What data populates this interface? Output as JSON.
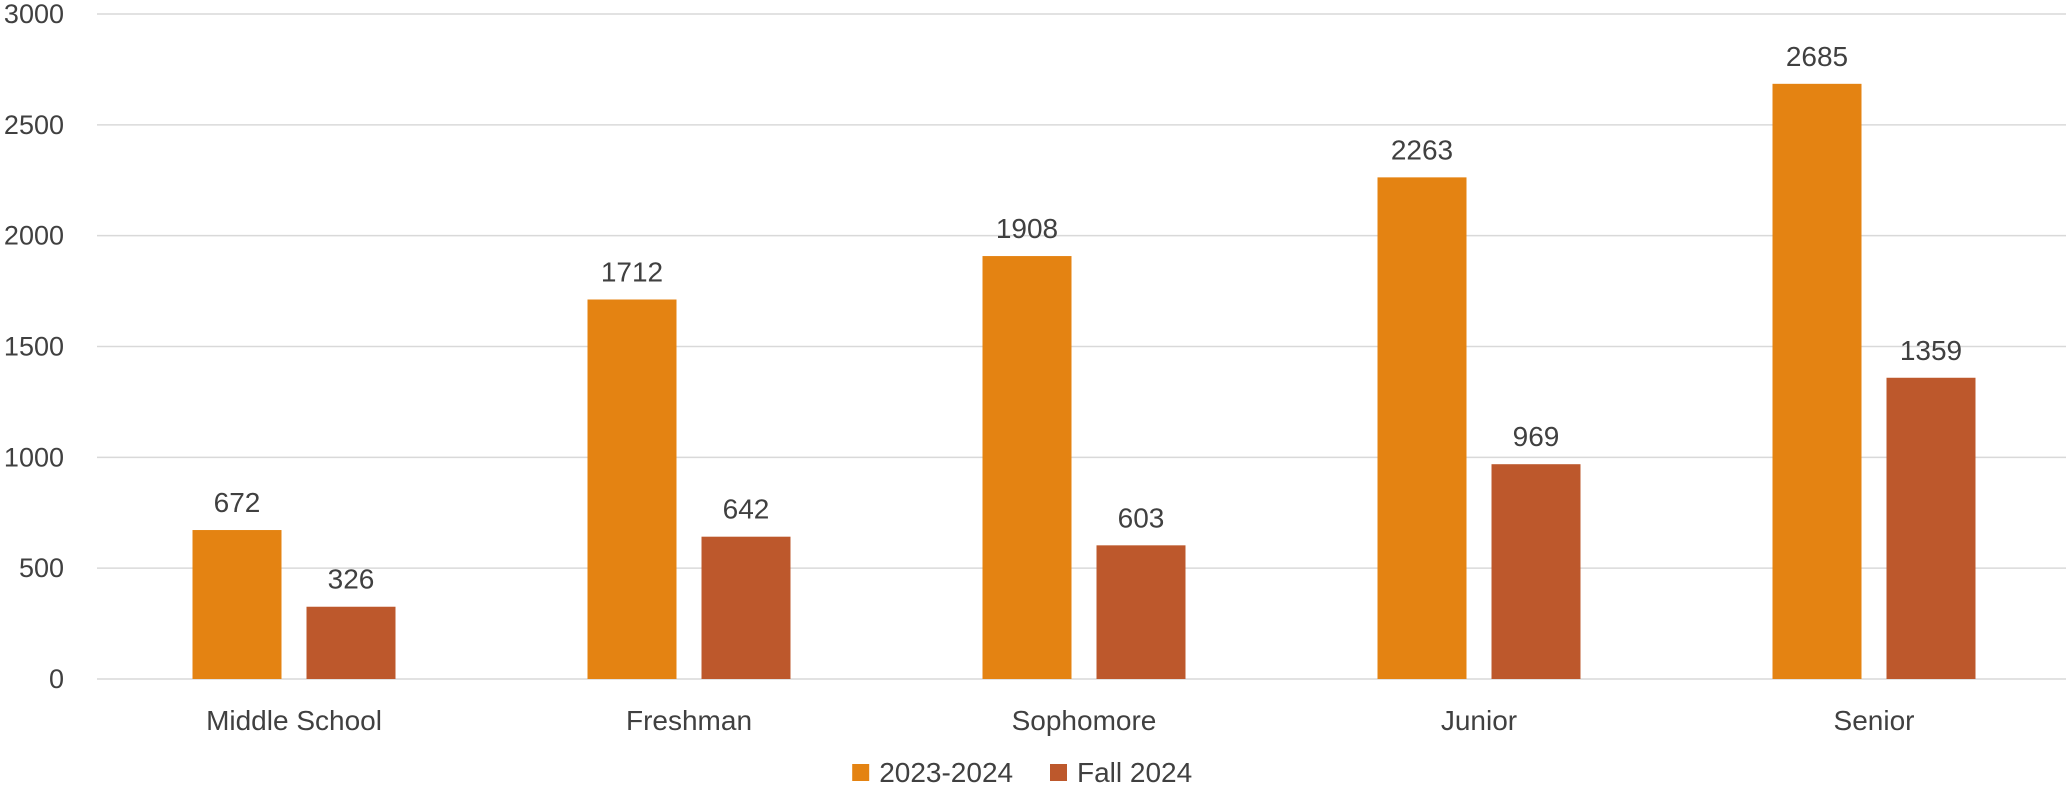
{
  "chart_data": {
    "type": "bar",
    "title": "",
    "xlabel": "",
    "ylabel": "",
    "categories": [
      "Middle School",
      "Freshman",
      "Sophomore",
      "Junior",
      "Senior"
    ],
    "series": [
      {
        "name": "2023-2024",
        "values": [
          672,
          1712,
          1908,
          2263,
          2685
        ],
        "color": "#E48312"
      },
      {
        "name": "Fall 2024",
        "values": [
          326,
          642,
          603,
          969,
          1359
        ],
        "color": "#BD582C"
      }
    ],
    "ylim": [
      0,
      3000
    ],
    "yticks": [
      0,
      500,
      1000,
      1500,
      2000,
      2500,
      3000
    ],
    "grid": true,
    "data_labels": true,
    "legend_position": "bottom-center"
  }
}
